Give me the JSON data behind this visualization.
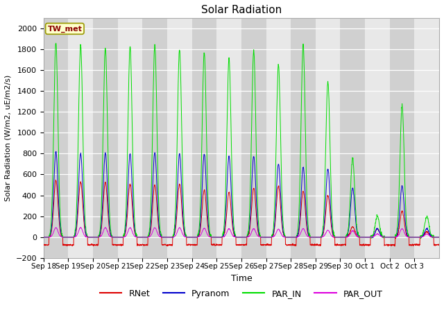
{
  "title": "Solar Radiation",
  "ylabel": "Solar Radiation (W/m2, uE/m2/s)",
  "xlabel": "Time",
  "ylim": [
    -200,
    2100
  ],
  "yticks": [
    -200,
    0,
    200,
    400,
    600,
    800,
    1000,
    1200,
    1400,
    1600,
    1800,
    2000
  ],
  "station_label": "TW_met",
  "line_colors": {
    "RNet": "#dd0000",
    "Pyranom": "#0000cc",
    "PAR_IN": "#00dd00",
    "PAR_OUT": "#dd00dd"
  },
  "band_light": "#e8e8e8",
  "band_dark": "#d0d0d0",
  "plot_bg": "#e8e8e8",
  "n_days": 16,
  "xtick_labels": [
    "Sep 18",
    "Sep 19",
    "Sep 20",
    "Sep 21",
    "Sep 22",
    "Sep 23",
    "Sep 24",
    "Sep 25",
    "Sep 26",
    "Sep 27",
    "Sep 28",
    "Sep 29",
    "Sep 30",
    "Oct 1",
    "Oct 2",
    "Oct 3"
  ],
  "day_peak_RNet": [
    540,
    530,
    525,
    510,
    500,
    510,
    450,
    430,
    470,
    490,
    440,
    400,
    100,
    80,
    250,
    50
  ],
  "day_peak_Pyranom": [
    820,
    800,
    805,
    800,
    810,
    800,
    795,
    775,
    775,
    700,
    670,
    650,
    470,
    80,
    490,
    80
  ],
  "day_peak_PAR_IN": [
    1860,
    1840,
    1810,
    1820,
    1840,
    1800,
    1770,
    1710,
    1790,
    1650,
    1840,
    1490,
    750,
    200,
    1260,
    200
  ],
  "day_peak_PAR_OUT": [
    90,
    90,
    90,
    90,
    90,
    90,
    85,
    80,
    80,
    75,
    80,
    65,
    60,
    30,
    80,
    30
  ],
  "night_RNet": -75,
  "night_Pyranom": -2,
  "night_PAR_IN": -2,
  "night_PAR_OUT": -2,
  "figsize": [
    6.4,
    4.8
  ],
  "dpi": 100
}
